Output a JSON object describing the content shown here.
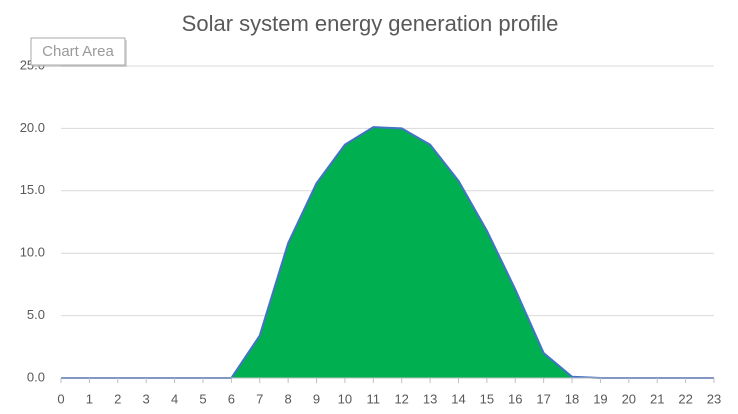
{
  "chart_data": {
    "type": "area",
    "title": "Solar system energy generation profile",
    "tooltip": "Chart Area",
    "x": [
      0,
      1,
      2,
      3,
      4,
      5,
      6,
      7,
      8,
      9,
      10,
      11,
      12,
      13,
      14,
      15,
      16,
      17,
      18,
      19,
      20,
      21,
      22,
      23
    ],
    "series": [
      {
        "color": "#00b050",
        "line_color": "#4472c4",
        "values": [
          0,
          0,
          0,
          0,
          0,
          0,
          0,
          3.4,
          10.8,
          15.6,
          18.7,
          20.1,
          20.0,
          18.7,
          15.8,
          11.8,
          7.1,
          2.0,
          0.1,
          0,
          0,
          0,
          0,
          0
        ]
      }
    ],
    "xlim": [
      0,
      23
    ],
    "xticks": [
      0,
      1,
      2,
      3,
      4,
      5,
      6,
      7,
      8,
      9,
      10,
      11,
      12,
      13,
      14,
      15,
      16,
      17,
      18,
      19,
      20,
      21,
      22,
      23
    ],
    "ylim": [
      0,
      25
    ],
    "yticks": [
      {
        "value": 0,
        "label": "0.0"
      },
      {
        "value": 5,
        "label": "5.0"
      },
      {
        "value": 10,
        "label": "10.0"
      },
      {
        "value": 15,
        "label": "15.0"
      },
      {
        "value": 20,
        "label": "20.0"
      },
      {
        "value": 25,
        "label": "25.0"
      }
    ],
    "grid": true
  }
}
